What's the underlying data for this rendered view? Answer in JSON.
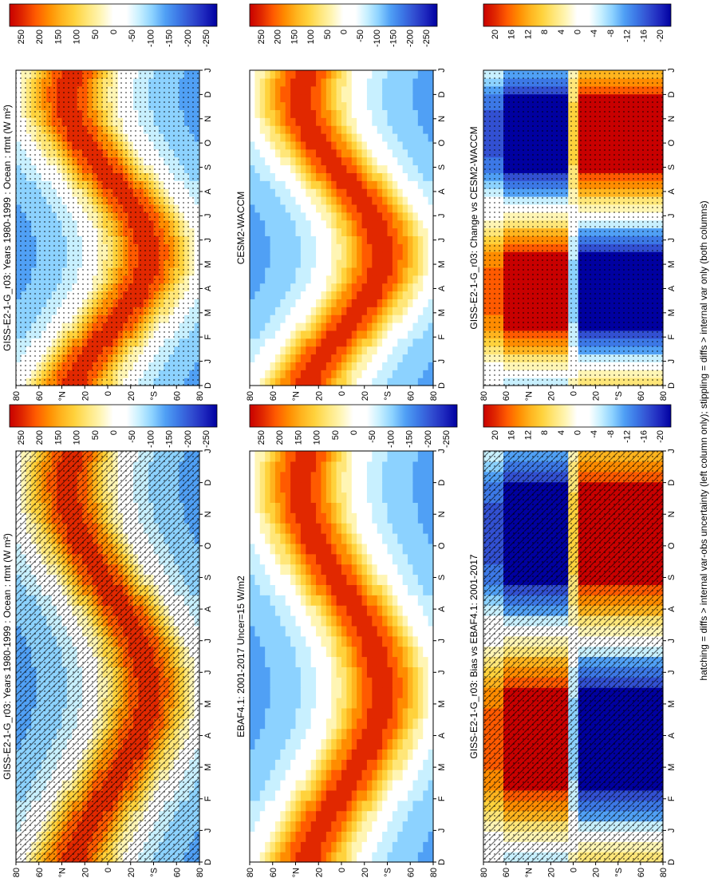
{
  "footnote": "hatching = diffs > internal var-obs uncertainty (left column only); stippling = diffs > internal var only (both columns)",
  "chart_data": [
    {
      "id": "model-left",
      "type": "heatmap",
      "title": "GISS-E2-1-G_r03: Years 1980-1999 : Ocean : rtmt (W m²)",
      "x_ticks": [
        "D",
        "J",
        "F",
        "M",
        "A",
        "M",
        "J",
        "J",
        "A",
        "S",
        "O",
        "N",
        "D",
        "J"
      ],
      "y_ticks": [
        "80",
        "60",
        "°N",
        "20",
        "0",
        "20",
        "°S",
        "60",
        "80"
      ],
      "colorbar_labels": [
        "250",
        "200",
        "150",
        "100",
        "50",
        "0",
        "-50",
        "-100",
        "-150",
        "-200",
        "-250"
      ],
      "palette": "diverging",
      "hatching": true,
      "stippling": true
    },
    {
      "id": "model-right",
      "type": "heatmap",
      "title": "GISS-E2-1-G_r03: Years 1980-1999 : Ocean : rtmt (W m²)",
      "x_ticks": [
        "D",
        "J",
        "F",
        "M",
        "A",
        "M",
        "J",
        "J",
        "A",
        "S",
        "O",
        "N",
        "D",
        "J"
      ],
      "y_ticks": [
        "80",
        "60",
        "°N",
        "20",
        "0",
        "20",
        "°S",
        "60",
        "80"
      ],
      "colorbar_labels": [
        "250",
        "200",
        "150",
        "100",
        "50",
        "0",
        "-50",
        "-100",
        "-150",
        "-200",
        "-250"
      ],
      "palette": "diverging",
      "hatching": false,
      "stippling": true
    },
    {
      "id": "obs-left",
      "type": "heatmap",
      "title": "EBAF4.1: 2001-2017 Uncer=15 W/m2",
      "x_ticks": [
        "D",
        "J",
        "F",
        "M",
        "A",
        "M",
        "J",
        "J",
        "A",
        "S",
        "O",
        "N",
        "D",
        "J"
      ],
      "y_ticks": [
        "80",
        "60",
        "°N",
        "20",
        "0",
        "20",
        "°S",
        "60",
        "80"
      ],
      "colorbar_labels": [
        "250",
        "200",
        "150",
        "100",
        "50",
        "0",
        "-50",
        "-100",
        "-150",
        "-200",
        "-250"
      ],
      "palette": "diverging",
      "hatching": false,
      "stippling": false
    },
    {
      "id": "obs-right",
      "type": "heatmap",
      "title": "CESM2-WACCM",
      "x_ticks": [
        "D",
        "J",
        "F",
        "M",
        "A",
        "M",
        "J",
        "J",
        "A",
        "S",
        "O",
        "N",
        "D",
        "J"
      ],
      "y_ticks": [
        "80",
        "60",
        "°N",
        "20",
        "0",
        "20",
        "°S",
        "60",
        "80"
      ],
      "colorbar_labels": [
        "250",
        "200",
        "150",
        "100",
        "50",
        "0",
        "-50",
        "-100",
        "-150",
        "-200",
        "-250"
      ],
      "palette": "diverging",
      "hatching": false,
      "stippling": false
    },
    {
      "id": "diff-left",
      "type": "heatmap",
      "title": "GISS-E2-1-G_r03: Bias vs EBAF4.1: 2001-2017",
      "x_ticks": [
        "D",
        "J",
        "F",
        "M",
        "A",
        "M",
        "J",
        "J",
        "A",
        "S",
        "O",
        "N",
        "D",
        "J"
      ],
      "y_ticks": [
        "80",
        "60",
        "°N",
        "20",
        "0",
        "20",
        "°S",
        "60",
        "80"
      ],
      "colorbar_labels": [
        "20",
        "16",
        "12",
        "8",
        "4",
        "0",
        "-4",
        "-8",
        "-12",
        "-16",
        "-20"
      ],
      "palette": "bias",
      "hatching": true,
      "stippling": true
    },
    {
      "id": "diff-right",
      "type": "heatmap",
      "title": "GISS-E2-1-G_r03: Change vs CESM2-WACCM",
      "x_ticks": [
        "D",
        "J",
        "F",
        "M",
        "A",
        "M",
        "J",
        "J",
        "A",
        "S",
        "O",
        "N",
        "D",
        "J"
      ],
      "y_ticks": [
        "80",
        "60",
        "°N",
        "20",
        "0",
        "20",
        "°S",
        "60",
        "80"
      ],
      "colorbar_labels": [
        "20",
        "16",
        "12",
        "8",
        "4",
        "0",
        "-4",
        "-8",
        "-12",
        "-16",
        "-20"
      ],
      "palette": "bias",
      "hatching": false,
      "stippling": true
    }
  ]
}
